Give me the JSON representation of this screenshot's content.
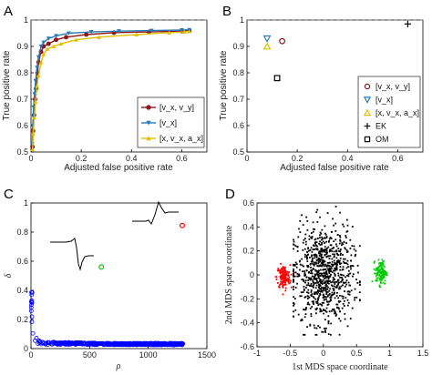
{
  "colors": {
    "vxvy": "#8b1a1a",
    "vx": "#2a7ab8",
    "xvxax": "#e0c000",
    "ek": "#000000",
    "om": "#000000",
    "scatter": "#0000ff",
    "mds_red": "#ff0000",
    "mds_green": "#00cc00",
    "mds_black": "#000000"
  },
  "chart_data": [
    {
      "panel": "A",
      "type": "line",
      "xlabel": "Adjusted false positive rate",
      "ylabel": "True positive rate",
      "xlim": [
        0,
        0.7
      ],
      "ylim": [
        0.5,
        1
      ],
      "xticks": [
        "0",
        "0.2",
        "0.4",
        "0.6"
      ],
      "yticks": [
        "0.5",
        "0.6",
        "0.7",
        "0.8",
        "0.9",
        "1"
      ],
      "reference_line": 1,
      "series": [
        {
          "name": "[v_x, v_y]",
          "color_key": "vxvy",
          "marker": "circle",
          "x": [
            0.006,
            0.008,
            0.012,
            0.016,
            0.02,
            0.026,
            0.03,
            0.04,
            0.05,
            0.07,
            0.1,
            0.14,
            0.22,
            0.33,
            0.47,
            0.6,
            0.63
          ],
          "y": [
            0.52,
            0.58,
            0.64,
            0.7,
            0.74,
            0.8,
            0.84,
            0.88,
            0.9,
            0.91,
            0.925,
            0.935,
            0.945,
            0.952,
            0.955,
            0.958,
            0.96
          ]
        },
        {
          "name": "[v_x]",
          "color_key": "vx",
          "marker": "triangle-down",
          "x": [
            0.005,
            0.007,
            0.01,
            0.014,
            0.018,
            0.024,
            0.03,
            0.04,
            0.05,
            0.07,
            0.1,
            0.15,
            0.24,
            0.35,
            0.48,
            0.6,
            0.63
          ],
          "y": [
            0.53,
            0.6,
            0.67,
            0.72,
            0.77,
            0.82,
            0.86,
            0.9,
            0.915,
            0.93,
            0.94,
            0.95,
            0.955,
            0.958,
            0.96,
            0.962,
            0.963
          ]
        },
        {
          "name": "[x, v_x, a_x]",
          "color_key": "xvxax",
          "marker": "triangle-up",
          "x": [
            0.006,
            0.009,
            0.013,
            0.018,
            0.024,
            0.03,
            0.04,
            0.05,
            0.065,
            0.09,
            0.12,
            0.18,
            0.27,
            0.42,
            0.55,
            0.61,
            0.63
          ],
          "y": [
            0.51,
            0.57,
            0.63,
            0.69,
            0.75,
            0.79,
            0.84,
            0.87,
            0.89,
            0.9,
            0.91,
            0.925,
            0.935,
            0.945,
            0.952,
            0.955,
            0.957
          ]
        }
      ]
    },
    {
      "panel": "B",
      "type": "scatter",
      "xlabel": "Adjusted false positive rate",
      "ylabel": "True positive rate",
      "xlim": [
        0,
        0.7
      ],
      "ylim": [
        0.5,
        1
      ],
      "xticks": [
        "0",
        "0.2",
        "0.4",
        "0.6"
      ],
      "yticks": [
        "0.5",
        "0.6",
        "0.7",
        "0.8",
        "0.9",
        "1"
      ],
      "reference_line": 1,
      "points": [
        {
          "name": "[v_x, v_y]",
          "color_key": "vxvy",
          "marker": "circle",
          "x": 0.14,
          "y": 0.92
        },
        {
          "name": "[v_x]",
          "color_key": "vx",
          "marker": "triangle-down",
          "x": 0.08,
          "y": 0.93
        },
        {
          "name": "[x, v_x, a_x]",
          "color_key": "xvxax",
          "marker": "triangle-up",
          "x": 0.08,
          "y": 0.9
        },
        {
          "name": "EK",
          "color_key": "ek",
          "marker": "plus",
          "x": 0.64,
          "y": 0.985
        },
        {
          "name": "OM",
          "color_key": "om",
          "marker": "square",
          "x": 0.12,
          "y": 0.78
        }
      ]
    },
    {
      "panel": "C",
      "type": "scatter",
      "xlabel": "ρ",
      "ylabel": "δ",
      "xlim": [
        0,
        1500
      ],
      "ylim": [
        0,
        1
      ],
      "xticks": [
        "0",
        "500",
        "1000",
        "1500"
      ],
      "yticks": [
        "0",
        "0.2",
        "0.4",
        "0.6",
        "0.8",
        "1"
      ],
      "highlighted": [
        {
          "color_key": "mds_red",
          "x": 1290,
          "y": 0.845
        },
        {
          "color_key": "mds_green",
          "x": 600,
          "y": 0.56
        }
      ]
    },
    {
      "panel": "D",
      "type": "scatter",
      "xlabel": "1st MDS space coordinate",
      "ylabel": "2nd MDS space coordinate",
      "xlim": [
        -1,
        1.5
      ],
      "ylim": [
        -0.6,
        0.6
      ],
      "xticks": [
        "-1",
        "-0.5",
        "0",
        "0.5",
        "1",
        "1.5"
      ],
      "yticks": [
        "-0.6",
        "-0.4",
        "-0.2",
        "0",
        "0.2",
        "0.4",
        "0.6"
      ],
      "clusters": [
        {
          "color_key": "mds_red",
          "center": [
            -0.6,
            -0.02
          ],
          "spread": [
            0.05,
            0.05
          ]
        },
        {
          "color_key": "mds_black",
          "center": [
            0.0,
            0.0
          ],
          "spread": [
            0.22,
            0.2
          ]
        },
        {
          "color_key": "mds_green",
          "center": [
            0.87,
            0.02
          ],
          "spread": [
            0.04,
            0.05
          ]
        }
      ]
    }
  ],
  "panels": {
    "A": {
      "label": "A"
    },
    "B": {
      "label": "B"
    },
    "C": {
      "label": "C"
    },
    "D": {
      "label": "D"
    }
  }
}
